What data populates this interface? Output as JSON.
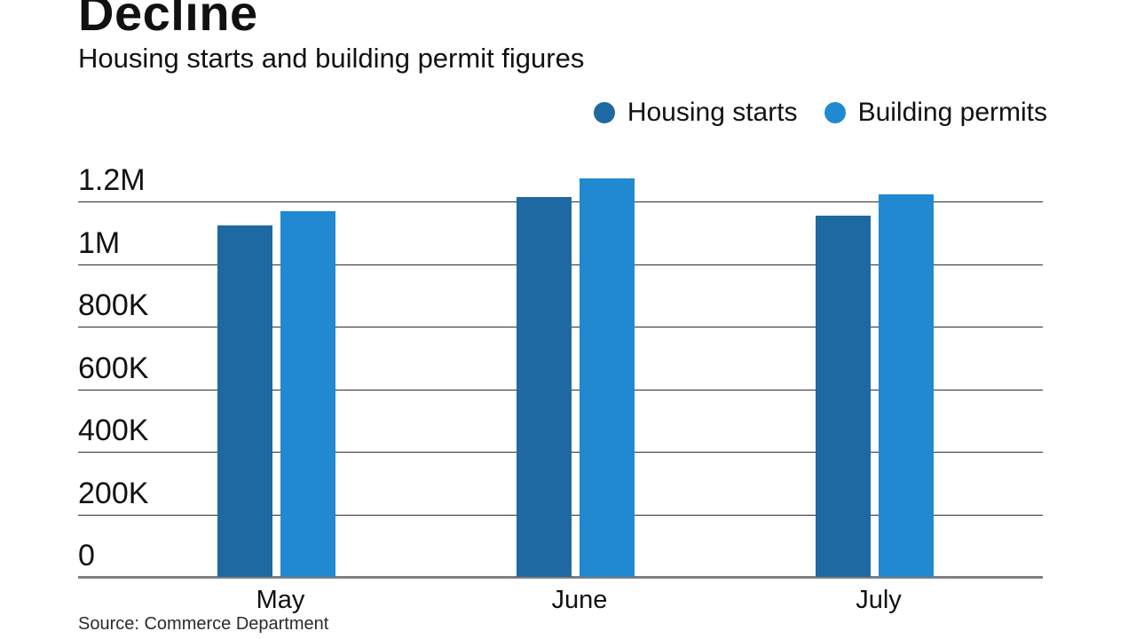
{
  "header": {
    "title": "Decline",
    "subtitle": "Housing starts and building permit figures"
  },
  "colors": {
    "housing_starts": "#1e69a1",
    "building_permits": "#2089d2",
    "gridline": "#2e2e2e",
    "baseline": "#7f7f7f",
    "text": "#111111"
  },
  "chart_data": {
    "type": "bar",
    "categories": [
      "May",
      "June",
      "July"
    ],
    "series": [
      {
        "name": "Housing starts",
        "color": "#1e69a1",
        "values": [
          1122000,
          1213000,
          1155000
        ]
      },
      {
        "name": "Building permits",
        "color": "#2089d2",
        "values": [
          1168000,
          1275000,
          1223000
        ]
      }
    ],
    "title": "Decline",
    "subtitle": "Housing starts and building permit figures",
    "xlabel": "",
    "ylabel": "",
    "ylim": [
      0,
      1200000
    ],
    "ytick_interval": 200000,
    "ytick_labels": [
      "0",
      "200K",
      "400K",
      "600K",
      "800K",
      "1M",
      "1.2M"
    ],
    "grid": true,
    "legend_position": "top-right"
  },
  "footer": {
    "source": "Source: Commerce Department"
  }
}
